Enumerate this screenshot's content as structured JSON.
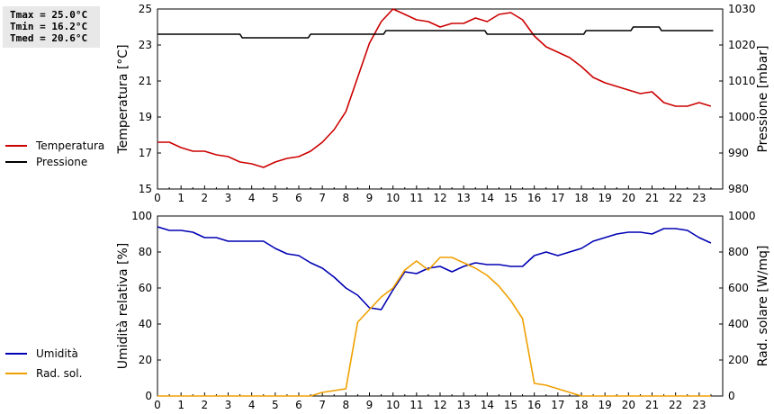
{
  "stats": {
    "tmax": "Tmax = 25.0°C",
    "tmin": "Tmin = 16.2°C",
    "tmed": "Tmed = 20.6°C"
  },
  "colors": {
    "temperature": "#cc0000",
    "pressure": "#000000",
    "humidity": "#0000b4",
    "radiation": "#f0a000"
  },
  "chart_data": [
    {
      "type": "line",
      "ylabel": "Temperatura [°C]",
      "y2label": "Pressione [mbar]",
      "xlim": [
        0,
        24
      ],
      "ylim": [
        15,
        25
      ],
      "y2lim": [
        980,
        1030
      ],
      "xticks": [
        0,
        1,
        2,
        3,
        4,
        5,
        6,
        7,
        8,
        9,
        10,
        11,
        12,
        13,
        14,
        15,
        16,
        17,
        18,
        19,
        20,
        21,
        22,
        23
      ],
      "yticks": [
        15,
        17,
        19,
        21,
        23,
        25
      ],
      "y2ticks": [
        980,
        990,
        1000,
        1010,
        1020,
        1030
      ],
      "series": [
        {
          "name": "Temperatura",
          "axis": "left",
          "color": "#cc0000",
          "x": [
            0,
            0.5,
            1,
            1.5,
            2,
            2.5,
            3,
            3.5,
            4,
            4.5,
            5,
            5.5,
            6,
            6.5,
            7,
            7.5,
            8,
            8.5,
            9,
            9.5,
            10,
            10.5,
            11,
            11.5,
            12,
            12.5,
            13,
            13.5,
            14,
            14.5,
            15,
            15.5,
            16,
            16.5,
            17,
            17.5,
            18,
            18.5,
            19,
            19.5,
            20,
            20.5,
            21,
            21.5,
            22,
            22.5,
            23,
            23.5
          ],
          "values": [
            17.6,
            17.6,
            17.3,
            17.1,
            17.1,
            16.9,
            16.8,
            16.5,
            16.4,
            16.2,
            16.5,
            16.7,
            16.8,
            17.1,
            17.6,
            18.3,
            19.3,
            21.2,
            23.1,
            24.3,
            25.0,
            24.7,
            24.4,
            24.3,
            24.0,
            24.2,
            24.2,
            24.5,
            24.3,
            24.7,
            24.8,
            24.4,
            23.5,
            22.9,
            22.6,
            22.3,
            21.8,
            21.2,
            20.9,
            20.7,
            20.5,
            20.3,
            20.4,
            19.8,
            19.6,
            19.6,
            19.8,
            19.6
          ]
        },
        {
          "name": "Pressione",
          "axis": "right",
          "color": "#000000",
          "x": [
            0,
            3.5,
            3.6,
            6.4,
            6.5,
            9.6,
            9.7,
            13.9,
            14,
            18.1,
            18.2,
            20.1,
            20.2,
            21.3,
            21.4,
            23.6
          ],
          "values": [
            1023,
            1023,
            1022,
            1022,
            1023,
            1023,
            1024,
            1024,
            1023,
            1023,
            1024,
            1024,
            1025,
            1025,
            1024,
            1024
          ]
        }
      ]
    },
    {
      "type": "line",
      "ylabel": "Umidità relativa [%]",
      "y2label": "Rad. solare [W/mq]",
      "xlim": [
        0,
        24
      ],
      "ylim": [
        0,
        100
      ],
      "y2lim": [
        0,
        1000
      ],
      "xticks": [
        0,
        1,
        2,
        3,
        4,
        5,
        6,
        7,
        8,
        9,
        10,
        11,
        12,
        13,
        14,
        15,
        16,
        17,
        18,
        19,
        20,
        21,
        22,
        23
      ],
      "yticks": [
        0,
        20,
        40,
        60,
        80,
        100
      ],
      "y2ticks": [
        0,
        200,
        400,
        600,
        800,
        1000
      ],
      "series": [
        {
          "name": "Umidità",
          "axis": "left",
          "color": "#0000b4",
          "x": [
            0,
            0.5,
            1,
            1.5,
            2,
            2.5,
            3,
            3.5,
            4,
            4.5,
            5,
            5.5,
            6,
            6.5,
            7,
            7.5,
            8,
            8.5,
            9,
            9.5,
            10,
            10.5,
            11,
            11.5,
            12,
            12.5,
            13,
            13.5,
            14,
            14.5,
            15,
            15.5,
            16,
            16.5,
            17,
            17.5,
            18,
            18.5,
            19,
            19.5,
            20,
            20.5,
            21,
            21.5,
            22,
            22.5,
            23,
            23.5
          ],
          "values": [
            94,
            92,
            92,
            91,
            88,
            88,
            86,
            86,
            86,
            86,
            82,
            79,
            78,
            74,
            71,
            66,
            60,
            56,
            49,
            48,
            59,
            69,
            68,
            71,
            72,
            69,
            72,
            74,
            73,
            73,
            72,
            72,
            78,
            80,
            78,
            80,
            82,
            86,
            88,
            90,
            91,
            91,
            90,
            93,
            93,
            92,
            88,
            85
          ]
        },
        {
          "name": "Rad. sol.",
          "axis": "right",
          "color": "#f0a000",
          "x": [
            0,
            6.5,
            7,
            7.5,
            8,
            8.5,
            9,
            9.5,
            10,
            10.5,
            11,
            11.5,
            12,
            12.5,
            13,
            13.5,
            14,
            14.5,
            15,
            15.5,
            16,
            16.5,
            17,
            17.5,
            18,
            23.5
          ],
          "values": [
            0,
            0,
            20,
            30,
            40,
            410,
            480,
            550,
            600,
            700,
            750,
            700,
            770,
            770,
            740,
            710,
            670,
            610,
            530,
            430,
            70,
            60,
            40,
            20,
            0,
            0
          ]
        }
      ]
    }
  ]
}
